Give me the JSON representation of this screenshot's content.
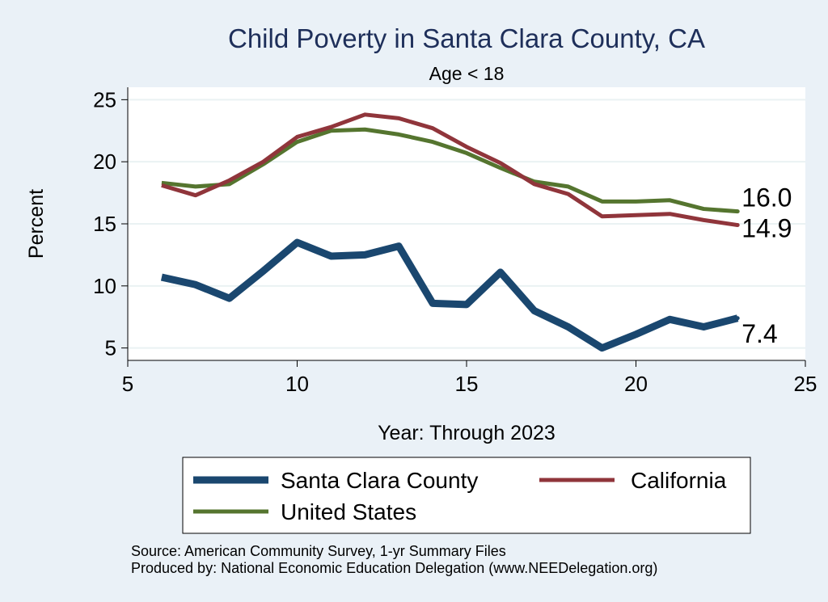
{
  "chart_data": {
    "type": "line",
    "title": "Child Poverty in Santa Clara County, CA",
    "subtitle": "Age < 18",
    "xlabel": "Year: Through 2023",
    "ylabel": "Percent",
    "xlim": [
      5,
      25
    ],
    "ylim": [
      4,
      26
    ],
    "xticks": [
      "5",
      "10",
      "15",
      "20",
      "25"
    ],
    "yticks": [
      "5",
      "10",
      "15",
      "20",
      "25"
    ],
    "x": [
      6,
      7,
      8,
      9,
      10,
      11,
      12,
      13,
      14,
      15,
      16,
      17,
      18,
      19,
      20,
      21,
      22,
      23
    ],
    "series": [
      {
        "name": "Santa Clara County",
        "color": "#1a476f",
        "values": [
          10.7,
          10.1,
          9.0,
          11.2,
          13.5,
          12.4,
          12.5,
          13.2,
          8.6,
          8.5,
          11.1,
          8.0,
          6.7,
          5.0,
          6.1,
          7.3,
          6.7,
          7.4
        ],
        "end_label": "7.4"
      },
      {
        "name": "California",
        "color": "#90353b",
        "values": [
          18.1,
          17.3,
          18.5,
          20.0,
          22.0,
          22.8,
          23.8,
          23.5,
          22.7,
          21.2,
          19.9,
          18.2,
          17.4,
          15.6,
          15.7,
          15.8,
          15.3,
          14.9
        ],
        "end_label": "14.9"
      },
      {
        "name": "United States",
        "color": "#55752f",
        "values": [
          18.3,
          18.0,
          18.2,
          19.8,
          21.6,
          22.5,
          22.6,
          22.2,
          21.6,
          20.7,
          19.5,
          18.4,
          18.0,
          16.8,
          16.8,
          16.9,
          16.2,
          16.0
        ],
        "end_label": "16.0"
      }
    ],
    "legend": {
      "position": "bottom",
      "entries": [
        "Santa Clara County",
        "California",
        "United States"
      ]
    },
    "source_lines": [
      "Source: American Community Survey, 1-yr Summary Files",
      "Produced by: National Economic Education Delegation (www.NEEDelegation.org)"
    ]
  }
}
